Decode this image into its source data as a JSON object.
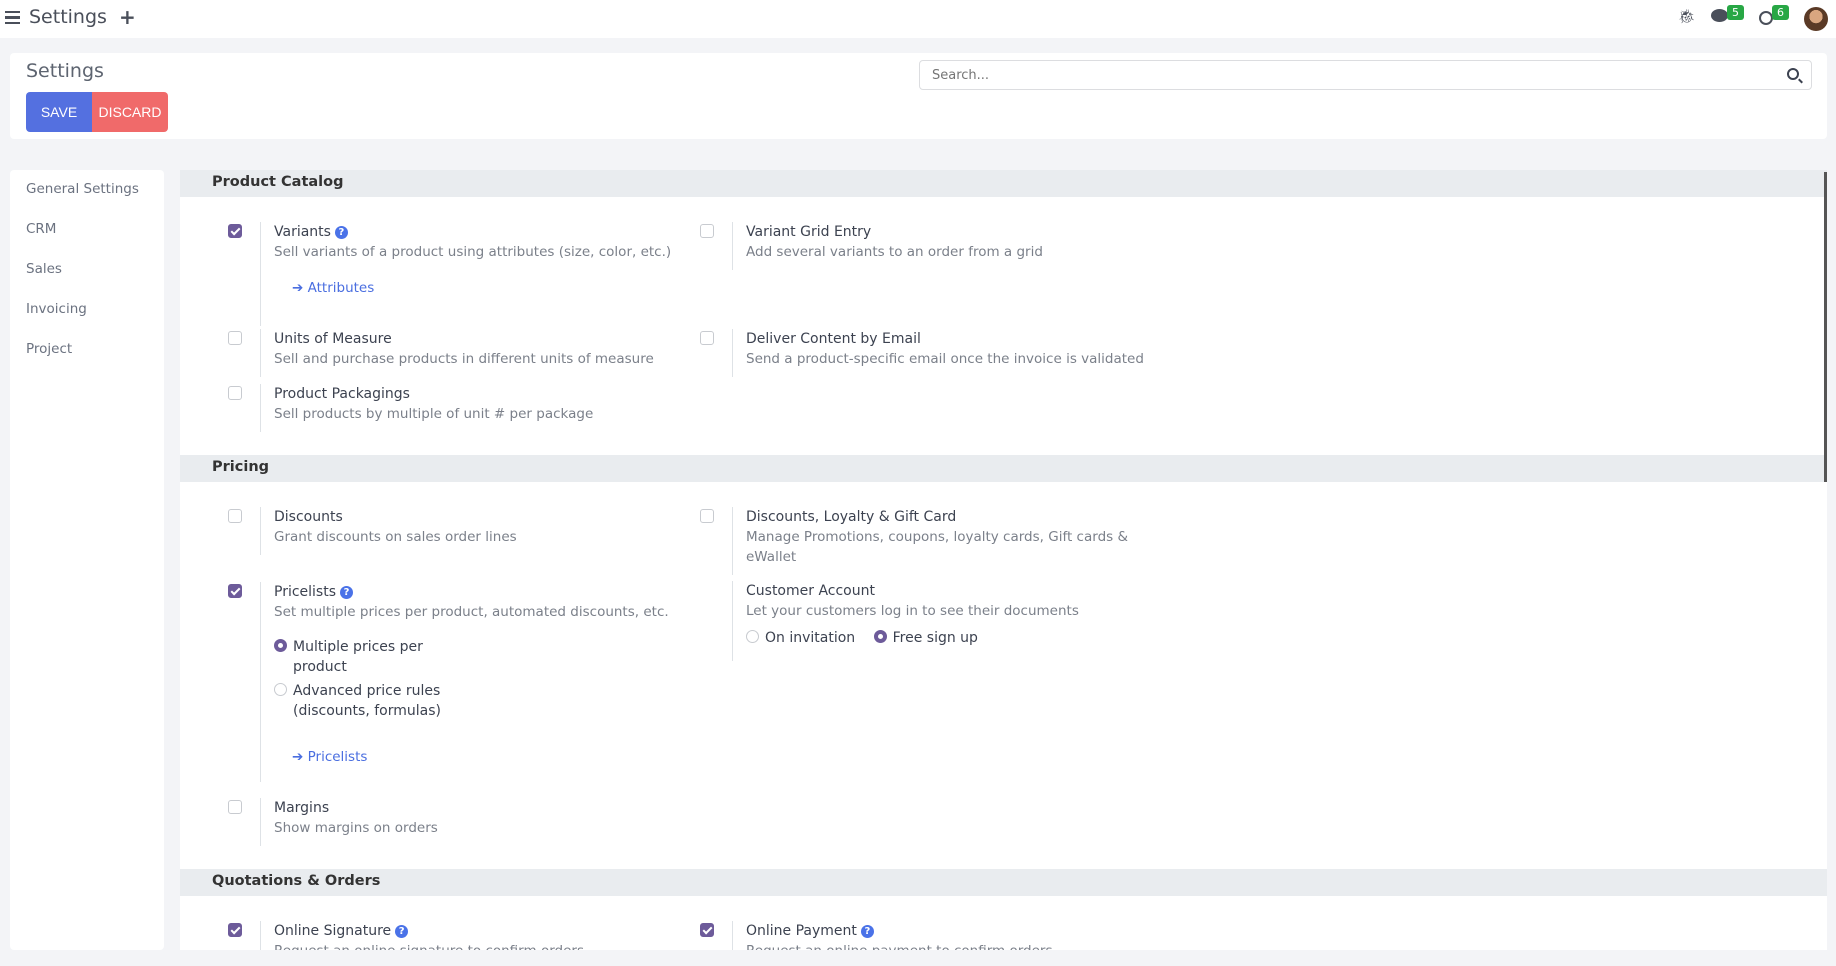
{
  "topbar": {
    "title": "Settings",
    "messages_count": "5",
    "activities_count": "6"
  },
  "control_panel": {
    "title": "Settings",
    "save": "SAVE",
    "discard": "DISCARD",
    "search_placeholder": "Search..."
  },
  "sidebar": {
    "items": [
      {
        "label": "General Settings"
      },
      {
        "label": "CRM"
      },
      {
        "label": "Sales"
      },
      {
        "label": "Invoicing"
      },
      {
        "label": "Project"
      }
    ]
  },
  "sections": {
    "product_catalog": {
      "title": "Product Catalog",
      "variants": {
        "title": "Variants",
        "desc": "Sell variants of a product using attributes (size, color, etc.)",
        "link": "Attributes",
        "checked": true
      },
      "variant_grid": {
        "title": "Variant Grid Entry",
        "desc": "Add several variants to an order from a grid",
        "checked": false
      },
      "uom": {
        "title": "Units of Measure",
        "desc": "Sell and purchase products in different units of measure",
        "checked": false
      },
      "deliver": {
        "title": "Deliver Content by Email",
        "desc": "Send a product-specific email once the invoice is validated",
        "checked": false
      },
      "packagings": {
        "title": "Product Packagings",
        "desc": "Sell products by multiple of unit # per package",
        "checked": false
      }
    },
    "pricing": {
      "title": "Pricing",
      "discounts": {
        "title": "Discounts",
        "desc": "Grant discounts on sales order lines",
        "checked": false
      },
      "loyalty": {
        "title": "Discounts, Loyalty & Gift Card",
        "desc1": "Manage Promotions, coupons, loyalty cards, Gift cards &",
        "desc2": "eWallet",
        "checked": false
      },
      "pricelists": {
        "title": "Pricelists",
        "desc": "Set multiple prices per product, automated discounts, etc.",
        "opt1a": "Multiple prices per",
        "opt1b": "product",
        "opt2a": "Advanced price rules",
        "opt2b": "(discounts, formulas)",
        "selected": "Multiple prices per product",
        "link": "Pricelists",
        "checked": true
      },
      "customer_account": {
        "title": "Customer Account",
        "desc": "Let your customers log in to see their documents",
        "opt1": "On invitation",
        "opt2": "Free sign up",
        "selected": "Free sign up"
      },
      "margins": {
        "title": "Margins",
        "desc": "Show margins on orders",
        "checked": false
      }
    },
    "quotations": {
      "title": "Quotations & Orders",
      "signature": {
        "title": "Online Signature",
        "desc": "Request an online signature to confirm orders",
        "checked": true
      },
      "payment": {
        "title": "Online Payment",
        "desc": "Request an online payment to confirm orders",
        "checked": true
      }
    }
  },
  "colors": {
    "save": "#5470e0",
    "discard": "#f06a6a",
    "checkbox": "#6d5b9a",
    "link": "#4a6ee0",
    "badge": "#28a745"
  }
}
